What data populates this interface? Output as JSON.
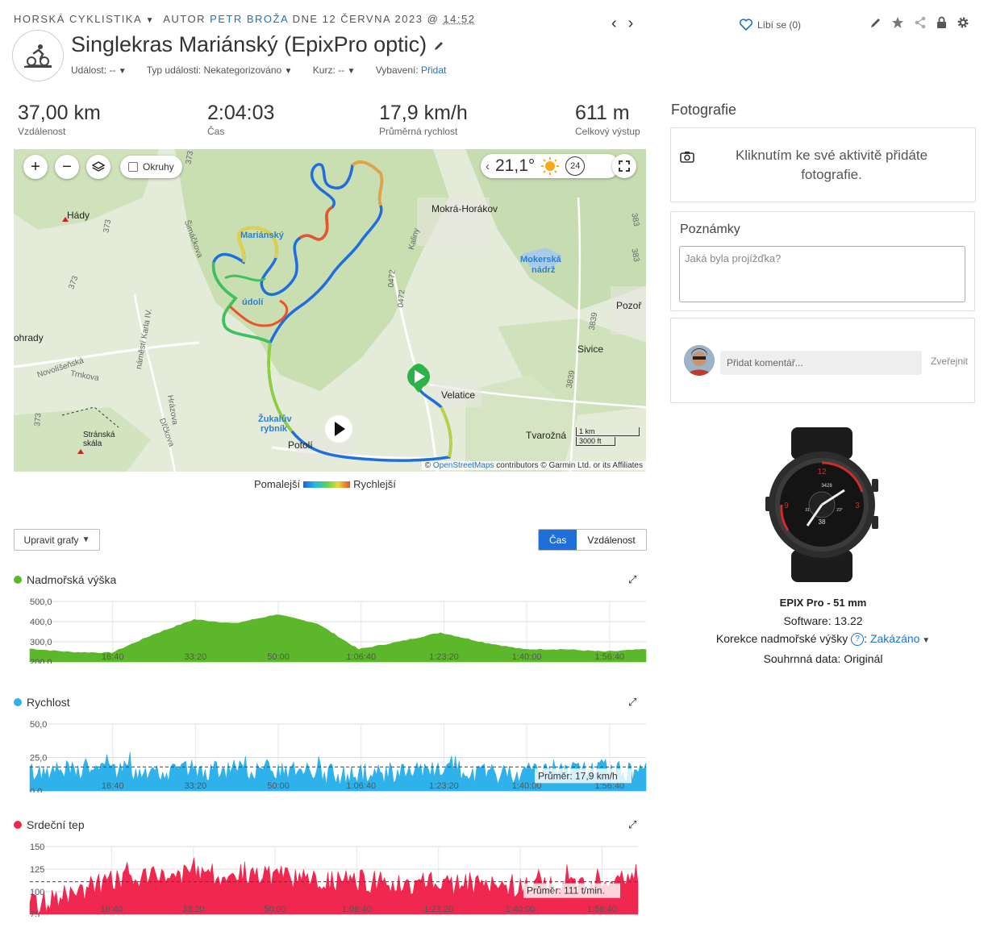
{
  "header": {
    "category": "HORSKÁ CYKLISTIKA",
    "author_prefix": "AUTOR",
    "author": "PETR BROŽA",
    "date": "DNE 12 ČERVNA 2023 @",
    "time": "14:52",
    "title": "Singlekras Mariánský (EpixPro optic)",
    "event_label": "Událost:",
    "event_value": "--",
    "event_type_label": "Typ události:",
    "event_type_value": "Nekategorizováno",
    "course_label": "Kurz:",
    "course_value": "--",
    "gear_label": "Vybavení:",
    "gear_value": "Přidat",
    "like_label": "Líbí se (0)"
  },
  "stats": [
    {
      "value": "37,00 km",
      "label": "Vzdálenost"
    },
    {
      "value": "2:04:03",
      "label": "Čas"
    },
    {
      "value": "17,9 km/h",
      "label": "Průměrná rychlost"
    },
    {
      "value": "611 m",
      "label": "Celkový výstup"
    }
  ],
  "map": {
    "laps_label": "Okruhy",
    "temperature": "21,1°",
    "hour": "24",
    "attribution_link": "OpenStreetMaps",
    "attribution_rest": "contributors © Garmin Ltd. or its Affiliates",
    "scale_km": "1 km",
    "scale_ft": "3000 ft",
    "labels": {
      "mokra": "Mokrá-Horákov",
      "hady": "Hády",
      "mokerska": "Mokerská",
      "nadrz": "nádrž",
      "pozor": "Pozoř",
      "ohrady": "ohrady",
      "sivice": "Sivice",
      "velatice": "Velatice",
      "tvarozna": "Tvarožná",
      "stranska": "Stránská",
      "skala": "skála",
      "potoli": "Potolí",
      "zukaluv": "Žukalův",
      "rybnik": "rybník",
      "novolisenska": "Novolíšeňská",
      "trnkova": "Trnkova",
      "simackova": "Šimáčkova",
      "namesti": "náměstí Karla IV.",
      "hrazova": "Hrázova",
      "drckova": "Dřčkova",
      "kaliny": "Kaliny",
      "r373a": "373",
      "r373b": "373",
      "r373c": "373",
      "r373d": "373",
      "r0472a": "0472",
      "r0472b": "0472",
      "r383a": "383",
      "r383b": "383",
      "r3839a": "3839",
      "r3839b": "3839",
      "mariansky": "Mariánský",
      "udoli": "údolí"
    }
  },
  "speed_legend": {
    "slow": "Pomalejší",
    "fast": "Rychlejší"
  },
  "graphs": {
    "edit_label": "Upravit grafy",
    "time_label": "Čas",
    "distance_label": "Vzdálenost",
    "elevation_title": "Nadmořská výška",
    "speed_title": "Rychlost",
    "hr_title": "Srdeční tep",
    "elevation_color": "#5cb82a",
    "speed_color": "#2fb1ec",
    "hr_color": "#f0284f",
    "x_ticks": [
      "16:40",
      "33:20",
      "50:00",
      "1:06:40",
      "1:23:20",
      "1:40:00",
      "1:56:40"
    ],
    "elevation_ticks": [
      "500,0",
      "400,0",
      "300,0",
      "200,0"
    ],
    "speed_ticks": [
      "50,0",
      "25,0",
      "0,0"
    ],
    "hr_ticks": [
      "150",
      "125",
      "100",
      "75"
    ],
    "speed_avg_label": "Průměr: 17,9 km/h",
    "hr_avg_label": "Průměr: 111 t/min."
  },
  "chart_data": [
    {
      "type": "area",
      "title": "Nadmořská výška",
      "x": [
        "0:00",
        "8:20",
        "16:40",
        "25:00",
        "33:20",
        "41:40",
        "50:00",
        "58:20",
        "1:06:40",
        "1:15:00",
        "1:23:20",
        "1:31:40",
        "1:40:00",
        "1:48:20",
        "1:56:40",
        "2:04:03"
      ],
      "values": [
        265,
        248,
        245,
        335,
        410,
        390,
        435,
        390,
        262,
        300,
        345,
        298,
        262,
        262,
        250,
        262
      ],
      "ylim": [
        200,
        500
      ]
    },
    {
      "type": "area",
      "title": "Rychlost",
      "x": [
        "0:00",
        "16:40",
        "33:20",
        "50:00",
        "1:06:40",
        "1:23:20",
        "1:40:00",
        "1:56:40",
        "2:04:03"
      ],
      "values": [
        14,
        16,
        15,
        16,
        12,
        14,
        12,
        17,
        14
      ],
      "ylim": [
        0,
        50
      ],
      "average": 17.9
    },
    {
      "type": "area",
      "title": "Srdeční tep",
      "x": [
        "0:00",
        "16:40",
        "33:20",
        "50:00",
        "1:06:40",
        "1:23:20",
        "1:40:00",
        "1:56:40",
        "2:04:03"
      ],
      "values": [
        85,
        110,
        120,
        118,
        112,
        110,
        106,
        108,
        118
      ],
      "ylim": [
        75,
        150
      ],
      "average": 111
    }
  ],
  "right": {
    "photos_title": "Fotografie",
    "photos_text": "Kliknutím ke své aktivitě přidáte fotografie.",
    "notes_title": "Poznámky",
    "notes_placeholder": "Jaká byla projížďka?",
    "comment_placeholder": "Přidat komentář...",
    "comment_post": "Zveřejnit",
    "device_name": "EPIX Pro - 51 mm",
    "software": "Software: 13.22",
    "elev_corr_label": "Korekce nadmořské výšky",
    "elev_corr_value": "Zakázáno",
    "summary": "Souhrnná data: Originál",
    "watch": {
      "n1": "12",
      "n2": "3",
      "n3": "9",
      "top": "3428",
      "center": "38",
      "left": "31",
      "right": "23°"
    }
  }
}
